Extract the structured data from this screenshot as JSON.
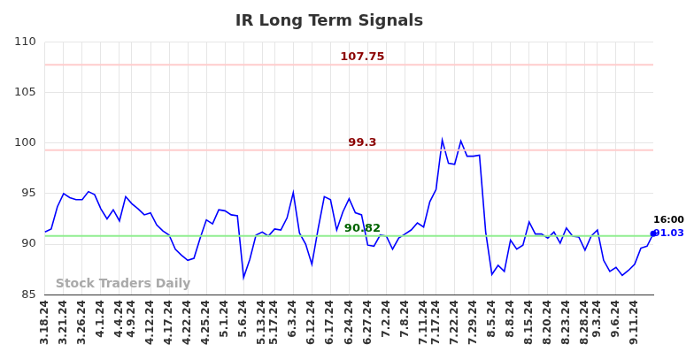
{
  "chart_data": {
    "type": "line",
    "title": "IR Long Term Signals",
    "watermark": "Stock Traders Daily",
    "categories": [
      "3.18.24",
      null,
      null,
      "3.21.24",
      null,
      null,
      "3.26.24",
      null,
      null,
      "4.1.24",
      null,
      null,
      "4.4.24",
      null,
      "4.9.24",
      null,
      null,
      "4.12.24",
      null,
      null,
      "4.17.24",
      null,
      null,
      "4.22.24",
      null,
      null,
      "4.25.24",
      null,
      null,
      "5.1.24",
      null,
      null,
      "5.6.24",
      null,
      null,
      "5.13.24",
      null,
      "5.17.24",
      null,
      null,
      "6.3.24",
      null,
      null,
      "6.12.24",
      null,
      null,
      "6.17.24",
      null,
      null,
      "6.24.24",
      null,
      null,
      "6.27.24",
      null,
      null,
      "7.2.24",
      null,
      null,
      "7.8.24",
      null,
      null,
      "7.11.24",
      null,
      "7.17.24",
      null,
      null,
      "7.22.24",
      null,
      null,
      "7.29.24",
      null,
      null,
      "8.5.24",
      null,
      null,
      "8.8.24",
      null,
      null,
      "8.15.24",
      null,
      null,
      "8.20.24",
      null,
      null,
      "8.23.24",
      null,
      null,
      "8.28.24",
      null,
      "9.3.24",
      null,
      null,
      "9.6.24",
      null,
      null,
      "9.11.24",
      null,
      null,
      null
    ],
    "values": [
      91.2,
      91.5,
      93.7,
      95.0,
      94.6,
      94.4,
      94.4,
      95.2,
      94.9,
      93.5,
      92.5,
      93.4,
      92.3,
      94.7,
      94.0,
      93.5,
      92.9,
      93.1,
      91.9,
      91.3,
      90.9,
      89.5,
      88.9,
      88.4,
      88.6,
      90.6,
      92.4,
      92.0,
      93.4,
      93.3,
      92.9,
      92.8,
      86.7,
      88.5,
      90.9,
      91.2,
      90.8,
      91.5,
      91.4,
      92.6,
      95.1,
      91.1,
      90.0,
      88.0,
      91.5,
      94.7,
      94.4,
      91.4,
      93.2,
      94.5,
      93.1,
      92.9,
      89.9,
      89.8,
      90.9,
      90.8,
      89.5,
      90.6,
      91.0,
      91.4,
      92.1,
      91.7,
      94.2,
      95.4,
      100.3,
      98.0,
      97.9,
      100.2,
      98.7,
      98.7,
      98.8,
      91.2,
      87.0,
      87.9,
      87.3,
      90.4,
      89.5,
      89.9,
      92.2,
      91.0,
      91.0,
      90.6,
      91.2,
      90.1,
      91.6,
      90.8,
      90.7,
      89.4,
      90.8,
      91.4,
      88.4,
      87.3,
      87.7,
      86.9,
      87.4,
      88.0,
      89.6,
      89.8,
      91.03
    ],
    "color": "#0000ff",
    "reference_lines": [
      {
        "value": 107.75,
        "color": "#ffcccc",
        "label_color": "#8b0000"
      },
      {
        "value": 99.3,
        "color": "#ffcccc",
        "label_color": "#8b0000"
      },
      {
        "value": 90.82,
        "color": "#90ee90",
        "label_color": "#006400"
      }
    ],
    "end_label": {
      "time": "16:00",
      "value": 91.03
    },
    "ylim": [
      85,
      110
    ],
    "yticks": [
      85,
      90,
      95,
      100,
      105,
      110
    ],
    "grid": true
  }
}
